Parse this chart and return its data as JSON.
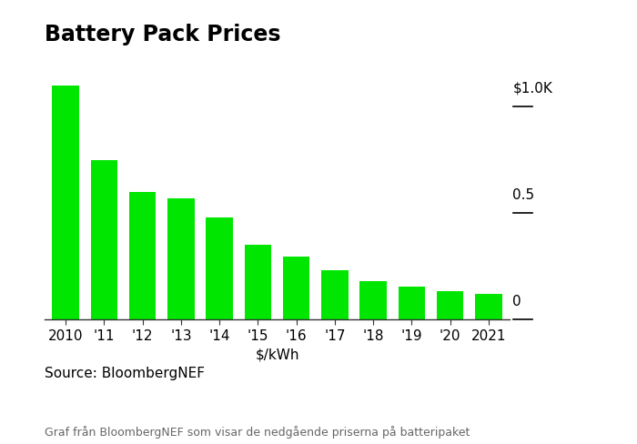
{
  "title": "Battery Pack Prices",
  "xlabel": "$/kWh",
  "categories": [
    "2010",
    "'11",
    "'12",
    "'13",
    "'14",
    "'15",
    "'16",
    "'17",
    "'18",
    "'19",
    "'20",
    "2021"
  ],
  "values": [
    1100,
    750,
    600,
    570,
    480,
    350,
    295,
    230,
    180,
    155,
    135,
    120
  ],
  "bar_color": "#00e600",
  "background_color": "#ffffff",
  "ytick_labels": [
    "$1.0K",
    "0.5",
    "0"
  ],
  "ytick_values": [
    1000,
    500,
    0
  ],
  "ylim": [
    0,
    1250
  ],
  "source_text": "Source: BloombergNEF",
  "caption_text": "Graf från BloombergNEF som visar de nedgående priserna på batteripaket",
  "title_fontsize": 17,
  "axis_fontsize": 11,
  "source_fontsize": 11,
  "caption_fontsize": 9
}
